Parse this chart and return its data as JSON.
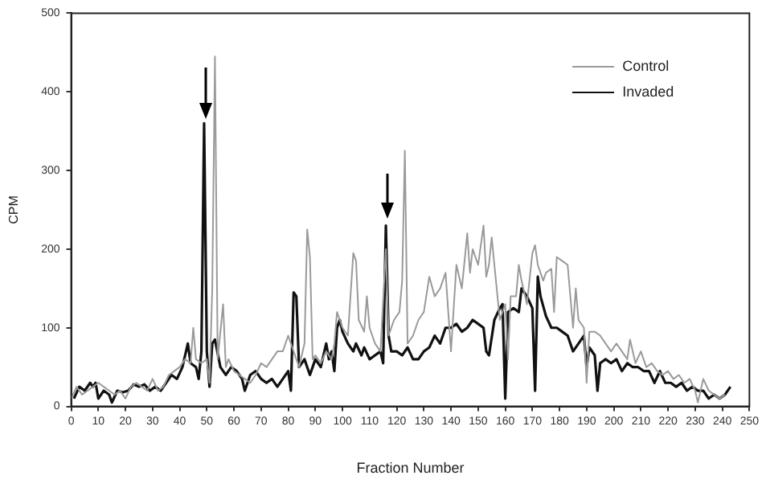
{
  "chart_data": {
    "type": "line",
    "xlabel": "Fraction Number",
    "ylabel": "CPM",
    "xlim": [
      0,
      250
    ],
    "xticks": [
      0,
      10,
      20,
      30,
      40,
      50,
      60,
      70,
      80,
      90,
      100,
      110,
      120,
      130,
      140,
      150,
      160,
      170,
      180,
      190,
      200,
      210,
      220,
      230,
      240,
      250
    ],
    "ylim": [
      0,
      500
    ],
    "yticks": [
      0,
      100,
      200,
      300,
      400,
      500
    ],
    "grid": false,
    "legend": "top right",
    "marker": "none",
    "series": [
      {
        "name": "Control",
        "color": "#9a9a9a",
        "x": [
          0,
          2,
          4,
          6,
          8,
          10,
          12,
          14,
          16,
          18,
          20,
          22,
          24,
          26,
          28,
          30,
          32,
          34,
          36,
          38,
          40,
          42,
          44,
          45,
          46,
          48,
          50,
          51,
          52,
          53,
          54,
          56,
          57,
          58,
          60,
          62,
          64,
          66,
          68,
          70,
          72,
          74,
          76,
          78,
          80,
          82,
          84,
          86,
          87,
          88,
          89,
          90,
          92,
          94,
          96,
          97,
          98,
          100,
          102,
          104,
          105,
          106,
          108,
          109,
          110,
          112,
          114,
          116,
          117,
          119,
          121,
          122,
          123,
          124,
          126,
          128,
          130,
          132,
          134,
          136,
          138,
          140,
          142,
          144,
          146,
          147,
          148,
          150,
          152,
          153,
          154,
          155,
          156,
          158,
          160,
          161,
          162,
          164,
          165,
          166,
          168,
          170,
          171,
          172,
          174,
          175,
          177,
          178,
          179,
          181,
          183,
          185,
          186,
          187,
          189,
          190,
          191,
          193,
          195,
          197,
          199,
          201,
          203,
          205,
          206,
          208,
          210,
          212,
          214,
          216,
          218,
          220,
          222,
          224,
          226,
          228,
          230,
          231,
          233,
          235,
          237,
          239,
          241
        ],
        "values": [
          10,
          25,
          15,
          20,
          25,
          30,
          25,
          20,
          15,
          20,
          10,
          25,
          30,
          25,
          20,
          35,
          20,
          25,
          40,
          45,
          50,
          60,
          55,
          100,
          60,
          55,
          60,
          30,
          150,
          445,
          60,
          130,
          50,
          60,
          45,
          40,
          35,
          30,
          40,
          55,
          50,
          60,
          70,
          70,
          90,
          70,
          50,
          80,
          225,
          190,
          60,
          65,
          55,
          70,
          60,
          80,
          120,
          100,
          90,
          195,
          185,
          110,
          95,
          140,
          100,
          80,
          70,
          200,
          90,
          110,
          120,
          160,
          325,
          80,
          90,
          110,
          120,
          165,
          140,
          150,
          170,
          70,
          180,
          150,
          220,
          170,
          200,
          180,
          230,
          165,
          180,
          215,
          180,
          110,
          130,
          60,
          140,
          140,
          180,
          160,
          130,
          195,
          205,
          180,
          160,
          170,
          175,
          120,
          190,
          185,
          180,
          100,
          150,
          110,
          100,
          30,
          95,
          95,
          90,
          80,
          70,
          80,
          70,
          60,
          85,
          55,
          70,
          50,
          55,
          45,
          40,
          45,
          35,
          40,
          30,
          35,
          20,
          5,
          35,
          20,
          15,
          10,
          15
        ]
      },
      {
        "name": "Invaded",
        "color": "#111111",
        "x": [
          1,
          3,
          5,
          7,
          8,
          9,
          10,
          12,
          14,
          15,
          17,
          19,
          21,
          23,
          25,
          27,
          29,
          31,
          33,
          35,
          37,
          39,
          41,
          43,
          44,
          46,
          47,
          48,
          49,
          50,
          51,
          52,
          53,
          55,
          57,
          59,
          61,
          63,
          64,
          66,
          68,
          70,
          72,
          74,
          76,
          78,
          80,
          81,
          82,
          83,
          84,
          86,
          88,
          90,
          92,
          94,
          95,
          96,
          97,
          98,
          99,
          100,
          102,
          104,
          105,
          107,
          108,
          110,
          112,
          114,
          115,
          116,
          117,
          118,
          120,
          122,
          124,
          126,
          128,
          130,
          132,
          134,
          136,
          138,
          140,
          142,
          144,
          146,
          148,
          150,
          152,
          153,
          154,
          156,
          158,
          159,
          160,
          161,
          163,
          165,
          166,
          168,
          170,
          171,
          172,
          173,
          175,
          177,
          179,
          181,
          183,
          185,
          187,
          189,
          190,
          191,
          193,
          194,
          195,
          197,
          199,
          201,
          203,
          205,
          207,
          209,
          211,
          213,
          215,
          217,
          219,
          221,
          223,
          225,
          227,
          229,
          231,
          233,
          235,
          237,
          239,
          241,
          243
        ],
        "values": [
          10,
          25,
          20,
          30,
          25,
          30,
          10,
          20,
          15,
          5,
          20,
          18,
          20,
          28,
          25,
          28,
          20,
          25,
          20,
          30,
          40,
          35,
          50,
          80,
          55,
          50,
          35,
          70,
          360,
          70,
          25,
          80,
          85,
          50,
          40,
          50,
          45,
          35,
          20,
          40,
          45,
          35,
          30,
          35,
          25,
          35,
          45,
          20,
          145,
          140,
          50,
          60,
          40,
          60,
          50,
          80,
          60,
          70,
          45,
          100,
          110,
          95,
          80,
          70,
          80,
          65,
          75,
          60,
          65,
          70,
          55,
          230,
          90,
          70,
          70,
          65,
          75,
          60,
          60,
          70,
          75,
          90,
          80,
          100,
          100,
          105,
          95,
          100,
          110,
          105,
          100,
          70,
          65,
          110,
          125,
          130,
          10,
          120,
          125,
          120,
          150,
          140,
          125,
          20,
          165,
          140,
          115,
          100,
          100,
          95,
          90,
          70,
          80,
          90,
          50,
          75,
          65,
          20,
          55,
          60,
          55,
          60,
          45,
          55,
          50,
          50,
          45,
          45,
          30,
          45,
          30,
          30,
          25,
          30,
          20,
          25,
          20,
          20,
          10,
          15,
          10,
          15,
          25
        ]
      }
    ]
  }
}
